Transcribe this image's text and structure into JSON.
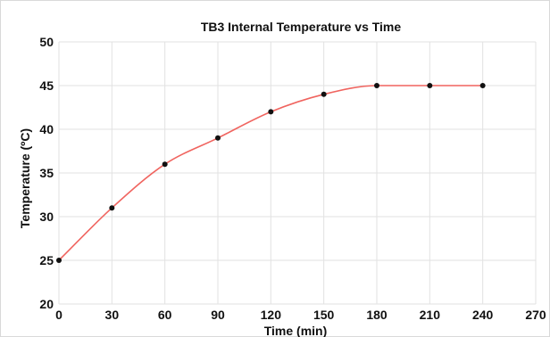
{
  "chart_data": {
    "type": "scatter",
    "title": "TB3 Internal Temperature vs Time",
    "xlabel": "Time (min)",
    "ylabel": "Temperature (ºC)",
    "xlim": [
      0,
      270
    ],
    "ylim": [
      20,
      50
    ],
    "x_ticks": [
      "0",
      "30",
      "60",
      "90",
      "120",
      "150",
      "180",
      "210",
      "240",
      "270"
    ],
    "y_ticks": [
      "20",
      "25",
      "30",
      "35",
      "40",
      "45",
      "50"
    ],
    "grid": true,
    "legend": "none",
    "series": [
      {
        "x": [
          0,
          30,
          60,
          90,
          120,
          150,
          180,
          210,
          240
        ],
        "y": [
          25,
          31,
          36,
          39,
          42,
          44,
          45,
          45,
          45
        ],
        "marker_color": "#111111",
        "trendline": {
          "type": "polynomial",
          "color": "#f0645f"
        }
      }
    ]
  }
}
